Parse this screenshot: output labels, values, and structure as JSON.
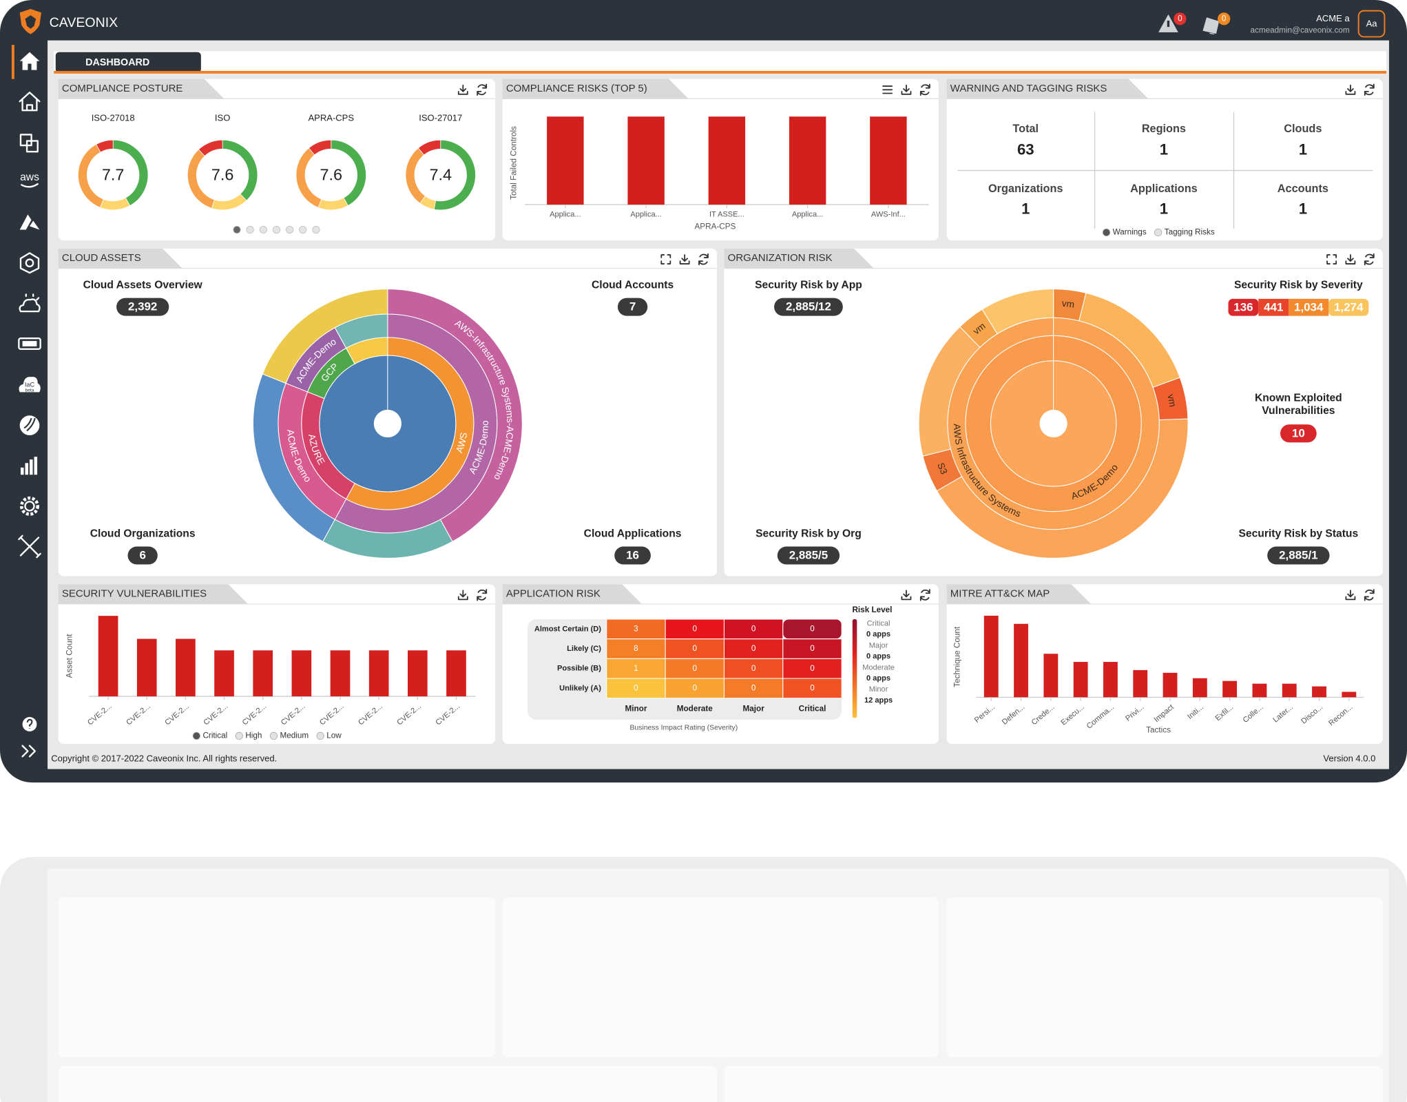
{
  "header": {
    "brand": "CAVEONIX",
    "alert_count": "0",
    "notification_count": "0",
    "user_name": "ACME a",
    "user_email": "acmeadmin@caveonix.com",
    "avatar": "Aa"
  },
  "sidebar": {
    "aws_label": "aws",
    "iac_label": "IaC",
    "iac_badge": "beta"
  },
  "tabs": [
    "DASHBOARD"
  ],
  "compliance_posture": {
    "title": "COMPLIANCE POSTURE",
    "part_colors": [
      "#4cae4f",
      "#fdd56c",
      "#f7a04a",
      "#e0322e"
    ],
    "gauges": [
      {
        "name": "ISO-27018",
        "score": "7.7",
        "parts": [
          42,
          14,
          36,
          8
        ]
      },
      {
        "name": "ISO",
        "score": "7.6",
        "parts": [
          38,
          17,
          33,
          12
        ]
      },
      {
        "name": "APRA-CPS",
        "score": "7.6",
        "parts": [
          42,
          14,
          33,
          11
        ]
      },
      {
        "name": "ISO-27017",
        "score": "7.4",
        "parts": [
          53,
          7,
          29,
          11
        ]
      }
    ]
  },
  "compliance_risks": {
    "title": "COMPLIANCE RISKS (TOP 5)",
    "chart": {
      "type": "bar",
      "y_label": "Total Failed Controls",
      "x_label": "APRA-CPS",
      "categories": [
        "Applica...",
        "Applica...",
        "IT ASSE...",
        "Applica...",
        "AWS-Inf..."
      ],
      "values": [
        1,
        1,
        1,
        1,
        1
      ],
      "color": "#d3201f",
      "ylim": [
        0,
        1.05
      ]
    }
  },
  "warning_tagging": {
    "title": "WARNING AND TAGGING RISKS",
    "stats": [
      {
        "label": "Total",
        "value": "63"
      },
      {
        "label": "Regions",
        "value": "1"
      },
      {
        "label": "Clouds",
        "value": "1"
      },
      {
        "label": "Organizations",
        "value": "1"
      },
      {
        "label": "Applications",
        "value": "1"
      },
      {
        "label": "Accounts",
        "value": "1"
      }
    ],
    "legend": [
      {
        "name": "Warnings",
        "color": "#555555"
      },
      {
        "name": "Tagging Risks",
        "color": "#e2e2e2"
      }
    ]
  },
  "cloud_assets": {
    "title": "CLOUD ASSETS",
    "stats": [
      {
        "label": "Cloud Assets Overview",
        "value": "2,392"
      },
      {
        "label": "Cloud Accounts",
        "value": "7"
      },
      {
        "label": "Cloud Organizations",
        "value": "6"
      },
      {
        "label": "Cloud Applications",
        "value": "16"
      }
    ],
    "sunburst": {
      "levels": [
        [
          {
            "name": null,
            "value": 100,
            "color": "#4a7db3"
          }
        ],
        [
          {
            "name": "AWS",
            "value": 58,
            "color": "#f39331"
          },
          {
            "name": "AZURE",
            "value": 23,
            "color": "#d6416a"
          },
          {
            "name": "GCP",
            "value": 11,
            "color": "#4fa64b"
          },
          {
            "name": null,
            "value": 8,
            "color": "#f6c944"
          }
        ],
        [
          {
            "name": "ACME-Demo",
            "value": 58,
            "color": "#b266a6"
          },
          {
            "name": "ACME-Demo",
            "value": 23,
            "color": "#d85a8f"
          },
          {
            "name": "ACME-Demo",
            "value": 11,
            "color": "#9a63a8"
          },
          {
            "name": null,
            "value": 8,
            "color": "#72b5b3"
          }
        ],
        [
          {
            "name": "AWS-Infrastructure Systems-ACME-Demo",
            "value": 42,
            "color": "#c4619e"
          },
          {
            "name": null,
            "value": 16,
            "color": "#6db3b0"
          },
          {
            "name": null,
            "value": 23,
            "color": "#5a8ec6"
          },
          {
            "name": null,
            "value": 19,
            "color": "#ecc94a"
          }
        ]
      ]
    }
  },
  "organization_risk": {
    "title": "ORGANIZATION RISK",
    "by_app": {
      "label": "Security Risk by App",
      "value": "2,885/12"
    },
    "by_severity": {
      "label": "Security Risk by Severity",
      "values": [
        "136",
        "441",
        "1,034",
        "1,274"
      ],
      "colors": [
        "#d9272b",
        "#e8452b",
        "#f28a2d",
        "#f9c35d"
      ]
    },
    "known_exploited": {
      "label_lines": [
        "Known Exploited",
        "Vulnerabilities"
      ],
      "value": "10"
    },
    "by_org": {
      "label": "Security Risk by Org",
      "value": "2,885/5"
    },
    "by_status": {
      "label": "Security Risk by Status",
      "value": "2,885/1"
    },
    "sunburst": {
      "levels": [
        [
          {
            "name": null,
            "value": 100,
            "color": "#fba65a"
          }
        ],
        [
          {
            "name": "ACME-Demo",
            "value": 100,
            "color": "#fa9a4c"
          }
        ],
        [
          {
            "name": "AWS Infrastructure Systems",
            "value": 100,
            "color": "#f9a254"
          }
        ],
        [
          {
            "name": "vm",
            "value": 14,
            "color": "#f08a3a"
          },
          {
            "name": null,
            "value": 56,
            "color": "#fbb45a"
          },
          {
            "name": "vm",
            "value": 18,
            "color": "#ef5f2f"
          },
          {
            "name": null,
            "value": 152,
            "color": "#fba559"
          },
          {
            "name": "S3",
            "value": 16,
            "color": "#f0793a"
          },
          {
            "name": null,
            "value": 60,
            "color": "#fbb062"
          },
          {
            "name": "vm",
            "value": 12,
            "color": "#f6a54a"
          },
          {
            "name": null,
            "value": 32,
            "color": "#fcc46a"
          }
        ]
      ]
    }
  },
  "security_vulnerabilities": {
    "title": "SECURITY VULNERABILITIES",
    "chart": {
      "type": "bar",
      "y_label": "Asset Count",
      "categories": [
        "CVE-2...",
        "CVE-2...",
        "CVE-2...",
        "CVE-2...",
        "CVE-2...",
        "CVE-2...",
        "CVE-2...",
        "CVE-2...",
        "CVE-2...",
        "CVE-2..."
      ],
      "values": [
        7,
        5,
        5,
        4,
        4,
        4,
        4,
        4,
        4,
        4
      ],
      "color": "#d3201f",
      "ylim": [
        0,
        7.8
      ]
    },
    "legend": [
      {
        "name": "Critical",
        "color": "#555555"
      },
      {
        "name": "High",
        "color": "#e2e2e2"
      },
      {
        "name": "Medium",
        "color": "#e2e2e2"
      },
      {
        "name": "Low",
        "color": "#e2e2e2"
      }
    ]
  },
  "application_risk": {
    "title": "APPLICATION RISK",
    "rows": [
      "Almost Certain (D)",
      "Likely (C)",
      "Possible (B)",
      "Unlikely (A)"
    ],
    "columns": [
      "Minor",
      "Moderate",
      "Major",
      "Critical"
    ],
    "values": [
      [
        3,
        0,
        0,
        0
      ],
      [
        8,
        0,
        0,
        0
      ],
      [
        1,
        0,
        0,
        0
      ],
      [
        0,
        0,
        0,
        0
      ]
    ],
    "colors": [
      [
        "#f26b25",
        "#e8151c",
        "#cf1323",
        "#a9152c"
      ],
      [
        "#f47f27",
        "#f05323",
        "#e2221f",
        "#c91625"
      ],
      [
        "#f9a733",
        "#f47a27",
        "#f04f23",
        "#e41f20"
      ],
      [
        "#fbc23d",
        "#f8a332",
        "#f47b27",
        "#f05224"
      ]
    ],
    "x_label": "Business Impact Rating (Severity)",
    "legend": {
      "title": "Risk Level",
      "items": [
        {
          "level": "Critical",
          "apps": "0 apps"
        },
        {
          "level": "Major",
          "apps": "0 apps"
        },
        {
          "level": "Moderate",
          "apps": "0 apps"
        },
        {
          "level": "Minor",
          "apps": "12 apps"
        }
      ]
    }
  },
  "mitre": {
    "title": "MITRE ATT&CK MAP",
    "chart": {
      "type": "bar",
      "y_label": "Technique Count",
      "x_label": "Tactics",
      "categories": [
        "Persi...",
        "Defen...",
        "Crede...",
        "Execu...",
        "Comma...",
        "Privi...",
        "Impact",
        "Initi...",
        "Exfil...",
        "Colle...",
        "Later...",
        "Disco...",
        "Recon..."
      ],
      "values": [
        30,
        27,
        16,
        13,
        13,
        10,
        9,
        7,
        6,
        5,
        5,
        4,
        2
      ],
      "color": "#d3201f",
      "ylim": [
        0,
        33
      ]
    }
  },
  "footer": {
    "copyright": "Copyright © 2017-2022 Caveonix Inc. All rights reserved.",
    "version": "Version 4.0.0"
  }
}
